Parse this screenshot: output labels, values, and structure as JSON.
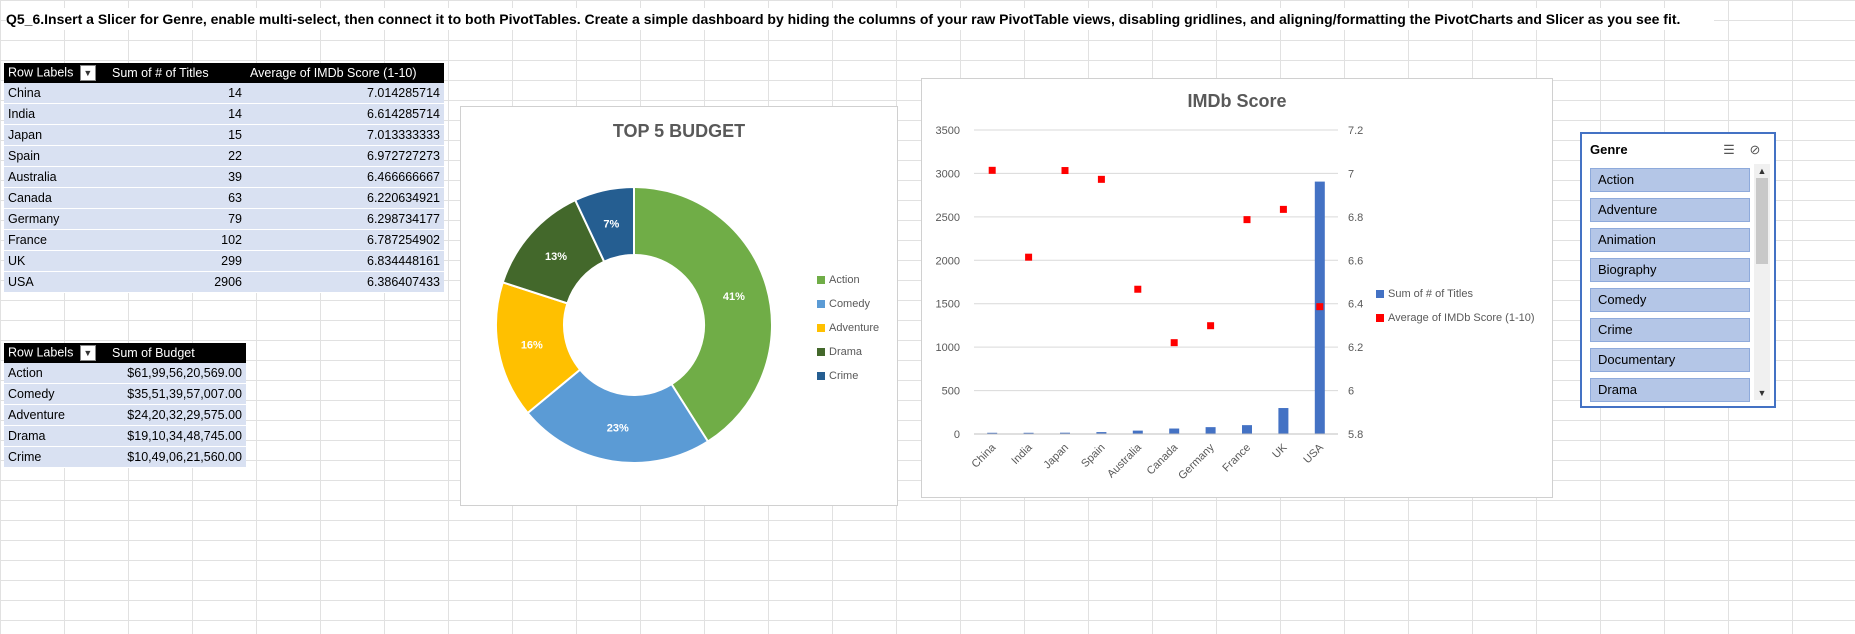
{
  "question": "Q5_6.Insert a Slicer for Genre, enable multi-select, then connect it to both PivotTables. Create a simple dashboard by hiding the columns of your raw PivotTable views, disabling gridlines, and aligning/formatting the PivotCharts and Slicer as you see fit.",
  "pivot1": {
    "headers": [
      "Row Labels",
      "Sum of # of Titles",
      "Average of IMDb Score (1-10)"
    ],
    "rows": [
      {
        "label": "China",
        "titles": "14",
        "score": "7.014285714"
      },
      {
        "label": "India",
        "titles": "14",
        "score": "6.614285714"
      },
      {
        "label": "Japan",
        "titles": "15",
        "score": "7.013333333"
      },
      {
        "label": "Spain",
        "titles": "22",
        "score": "6.972727273"
      },
      {
        "label": "Australia",
        "titles": "39",
        "score": "6.466666667"
      },
      {
        "label": "Canada",
        "titles": "63",
        "score": "6.220634921"
      },
      {
        "label": "Germany",
        "titles": "79",
        "score": "6.298734177"
      },
      {
        "label": "France",
        "titles": "102",
        "score": "6.787254902"
      },
      {
        "label": "UK",
        "titles": "299",
        "score": "6.834448161"
      },
      {
        "label": "USA",
        "titles": "2906",
        "score": "6.386407433"
      }
    ]
  },
  "pivot2": {
    "headers": [
      "Row Labels",
      "Sum of Budget"
    ],
    "rows": [
      {
        "label": "Action",
        "budget": "$61,99,56,20,569.00"
      },
      {
        "label": "Comedy",
        "budget": "$35,51,39,57,007.00"
      },
      {
        "label": "Adventure",
        "budget": "$24,20,32,29,575.00"
      },
      {
        "label": "Drama",
        "budget": "$19,10,34,48,745.00"
      },
      {
        "label": "Crime",
        "budget": "$10,49,06,21,560.00"
      }
    ]
  },
  "chart_data": [
    {
      "type": "pie",
      "title": "TOP 5 BUDGET",
      "categories": [
        "Action",
        "Comedy",
        "Adventure",
        "Drama",
        "Crime"
      ],
      "values": [
        41,
        23,
        16,
        13,
        7
      ],
      "labels": [
        "41%",
        "23%",
        "16%",
        "13%",
        "7%"
      ],
      "colors": [
        "#70ad47",
        "#5b9bd5",
        "#ffc000",
        "#43682b",
        "#255e91"
      ],
      "legend": "right"
    },
    {
      "type": "bar",
      "title": "IMDb Score",
      "categories": [
        "China",
        "India",
        "Japan",
        "Spain",
        "Australia",
        "Canada",
        "Germany",
        "France",
        "UK",
        "USA"
      ],
      "series": [
        {
          "name": "Sum of # of Titles",
          "type": "bar",
          "axis": "left",
          "color": "#4472c4",
          "values": [
            14,
            14,
            15,
            22,
            39,
            63,
            79,
            102,
            299,
            2906
          ]
        },
        {
          "name": "Average of IMDb Score (1-10)",
          "type": "scatter",
          "axis": "right",
          "color": "#ff0000",
          "values": [
            7.014285714,
            6.614285714,
            7.013333333,
            6.972727273,
            6.466666667,
            6.220634921,
            6.298734177,
            6.787254902,
            6.834448161,
            6.386407433
          ]
        }
      ],
      "ylim": [
        0,
        3500
      ],
      "yticks": [
        "0",
        "500",
        "1000",
        "1500",
        "2000",
        "2500",
        "3000",
        "3500"
      ],
      "y2lim": [
        5.8,
        7.2
      ],
      "y2ticks": [
        "5.8",
        "6",
        "6.2",
        "6.4",
        "6.6",
        "6.8",
        "7",
        "7.2"
      ],
      "grid": true,
      "legend": "right"
    }
  ],
  "slicer": {
    "title": "Genre",
    "items": [
      "Action",
      "Adventure",
      "Animation",
      "Biography",
      "Comedy",
      "Crime",
      "Documentary",
      "Drama"
    ],
    "multiselect_icon": "multi-select-icon",
    "clear_icon": "clear-filter-icon"
  }
}
